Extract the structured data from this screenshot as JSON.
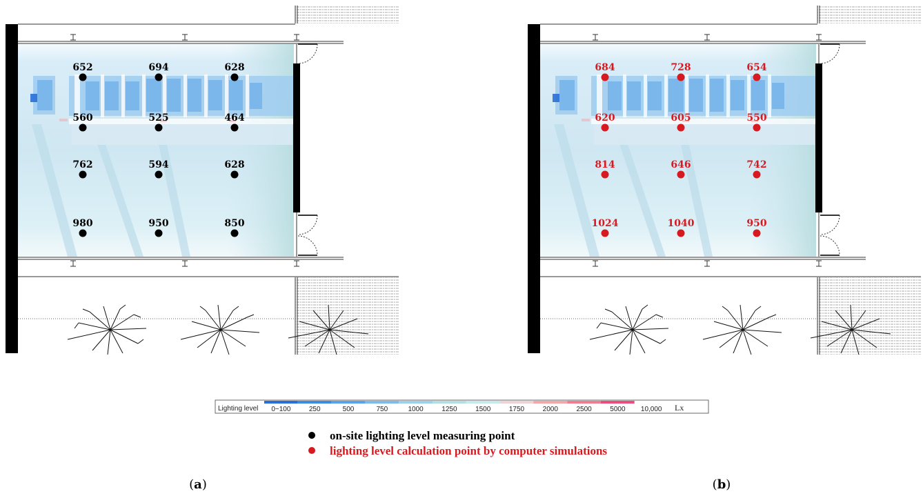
{
  "panels": [
    {
      "id": "a",
      "caption_open": "(",
      "caption_letter": "a",
      "caption_close": ")",
      "point_color": "#000000",
      "rows": [
        [
          "652",
          "694",
          "628"
        ],
        [
          "560",
          "525",
          "464"
        ],
        [
          "762",
          "594",
          "628"
        ],
        [
          "980",
          "950",
          "850"
        ]
      ]
    },
    {
      "id": "b",
      "caption_open": "(",
      "caption_letter": "b",
      "caption_close": ")",
      "point_color": "#d71920",
      "rows": [
        [
          "684",
          "728",
          "654"
        ],
        [
          "620",
          "605",
          "550"
        ],
        [
          "814",
          "646",
          "742"
        ],
        [
          "1024",
          "1040",
          "950"
        ]
      ]
    }
  ],
  "legend": {
    "label": "Lighting level",
    "unit": "Lx",
    "levels": [
      "0~100",
      "250",
      "500",
      "750",
      "1000",
      "1250",
      "1500",
      "1750",
      "2000",
      "2500",
      "5000",
      "10,000"
    ],
    "colors": [
      "#2a6fd6",
      "#3f8be0",
      "#5aa3e8",
      "#7cbbec",
      "#9fd0ec",
      "#b3dfe4",
      "#c6e9ec",
      "#ecd3d6",
      "#f1a8a8",
      "#ef7e93",
      "#e84f7d",
      "#ffffff"
    ]
  },
  "key": {
    "measured_label": "on-site lighting level measuring point",
    "measured_color": "#000000",
    "simulated_label": "lighting level calculation point by computer simulations",
    "simulated_color": "#d71920"
  }
}
